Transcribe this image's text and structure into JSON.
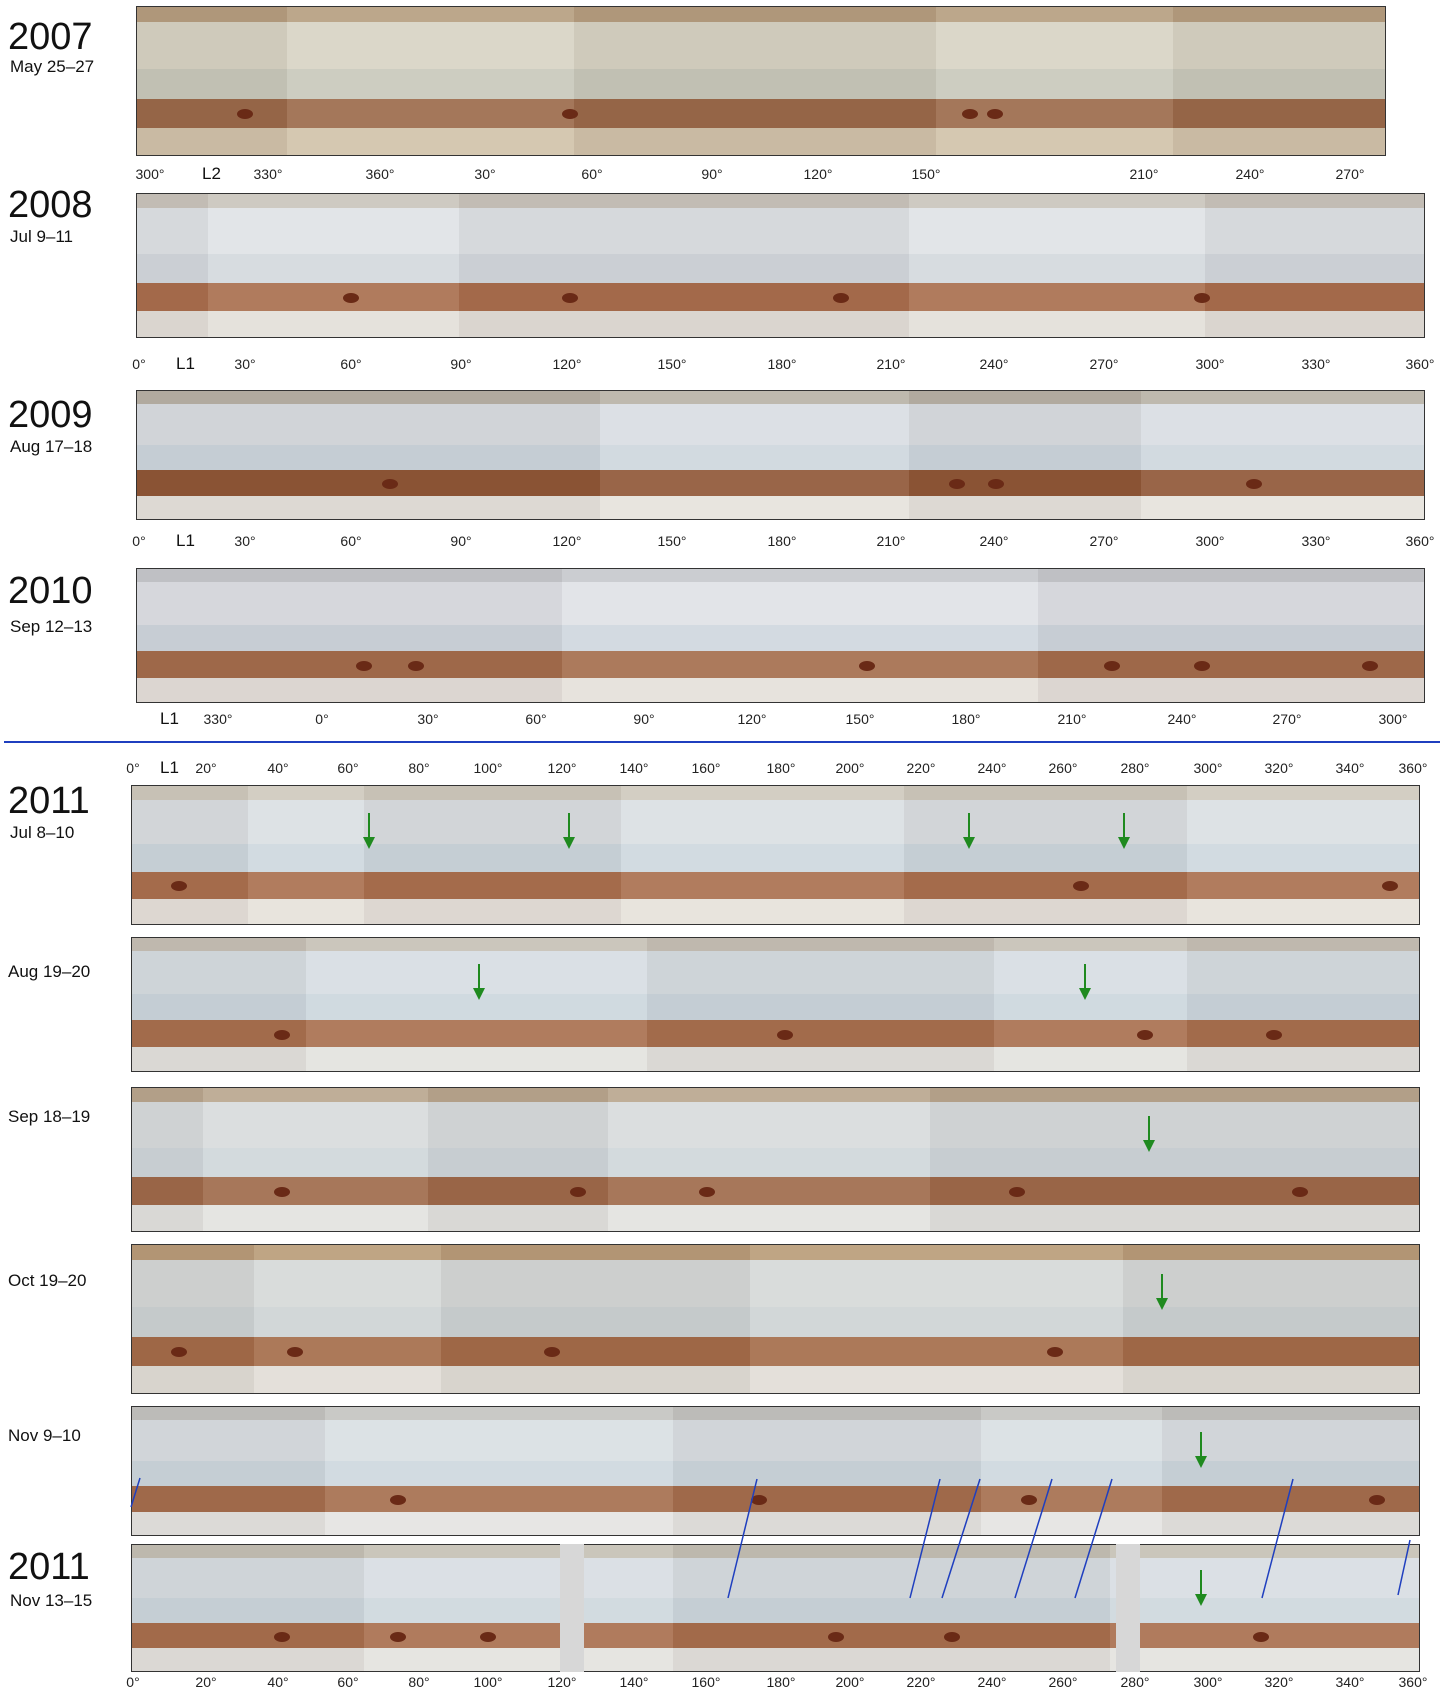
{
  "rows": [
    {
      "id": "r2007",
      "year": "2007",
      "date": "May 25–27",
      "system": "L2",
      "ticks": [
        "300°",
        "330°",
        "360°",
        "30°",
        "60°",
        "90°",
        "120°",
        "150°",
        "210°",
        "240°",
        "270°"
      ]
    },
    {
      "id": "r2008",
      "year": "2008",
      "date": "Jul 9–11",
      "system": "L1",
      "ticks": [
        "0°",
        "30°",
        "60°",
        "90°",
        "120°",
        "150°",
        "180°",
        "210°",
        "240°",
        "270°",
        "300°",
        "330°",
        "360°"
      ]
    },
    {
      "id": "r2009",
      "year": "2009",
      "date": "Aug 17–18",
      "system": "L1",
      "ticks": [
        "0°",
        "30°",
        "60°",
        "90°",
        "120°",
        "150°",
        "180°",
        "210°",
        "240°",
        "270°",
        "300°",
        "330°",
        "360°"
      ]
    },
    {
      "id": "r2010",
      "year": "2010",
      "date": "Sep 12–13",
      "system": "L1",
      "ticks": [
        "330°",
        "0°",
        "30°",
        "60°",
        "90°",
        "120°",
        "150°",
        "180°",
        "210°",
        "240°",
        "270°",
        "300°"
      ]
    },
    {
      "id": "r2011a",
      "year": "2011",
      "date": "Jul 8–10",
      "system": "L1",
      "ticks": [
        "0°",
        "20°",
        "40°",
        "60°",
        "80°",
        "100°",
        "120°",
        "140°",
        "160°",
        "180°",
        "200°",
        "220°",
        "240°",
        "260°",
        "280°",
        "300°",
        "320°",
        "340°",
        "360°"
      ]
    },
    {
      "id": "r2011b",
      "year": "",
      "date": "Aug 19–20",
      "system": "",
      "ticks": []
    },
    {
      "id": "r2011c",
      "year": "",
      "date": "Sep 18–19",
      "system": "",
      "ticks": []
    },
    {
      "id": "r2011d",
      "year": "",
      "date": "Oct 19–20",
      "system": "",
      "ticks": []
    },
    {
      "id": "r2011e",
      "year": "",
      "date": "Nov 9–10",
      "system": "",
      "ticks": []
    },
    {
      "id": "r2011f",
      "year": "2011",
      "date": "Nov 13–15",
      "system": "",
      "ticks": [
        "0°",
        "20°",
        "40°",
        "60°",
        "80°",
        "100°",
        "120°",
        "140°",
        "160°",
        "180°",
        "200°",
        "220°",
        "240°",
        "260°",
        "280°",
        "300°",
        "320°",
        "340°",
        "360°"
      ]
    }
  ],
  "colors": {
    "cloud_light": "#d9dde0",
    "cloud_blue": "#c6d2dc",
    "belt_brown": "#a9704f",
    "belt_dark": "#7a3e25",
    "zone_cream": "#e6dccb",
    "arrow_green": "#1f8a1f",
    "divider_blue": "#1f3fbf",
    "gap_grey": "#d7d7d7"
  },
  "icons": {
    "marker": "green-down-arrow",
    "track": "blue-slanted-line"
  }
}
